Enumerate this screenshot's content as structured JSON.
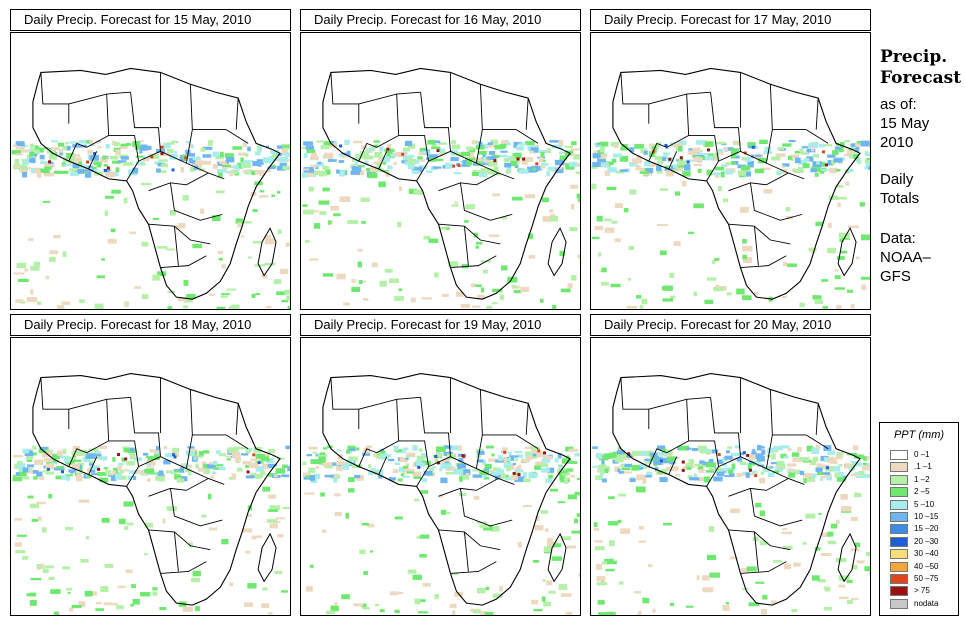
{
  "panels": [
    {
      "title": "Daily Precip. Forecast for  15 May, 2010"
    },
    {
      "title": "Daily Precip. Forecast for  16 May, 2010"
    },
    {
      "title": "Daily Precip. Forecast for  17 May, 2010"
    },
    {
      "title": "Daily Precip. Forecast for  18 May, 2010"
    },
    {
      "title": "Daily Precip. Forecast for  19 May, 2010"
    },
    {
      "title": "Daily Precip. Forecast for  20 May, 2010"
    }
  ],
  "sidebar": {
    "title_line1": "Precip.",
    "title_line2": "Forecast",
    "asof": "as of:",
    "date_line1": "15 May",
    "date_line2": "2010",
    "daily_line1": "Daily",
    "daily_line2": "Totals",
    "data_line1": "Data:",
    "data_line2": "NOAA–",
    "data_line3": "GFS"
  },
  "legend": {
    "title": "PPT (mm)",
    "entries": [
      {
        "label": "0 –1",
        "color": "#ffffff"
      },
      {
        "label": ".1 –1",
        "color": "#ecd9bf"
      },
      {
        "label": "1 –2",
        "color": "#b5f0a8"
      },
      {
        "label": "2 –5",
        "color": "#6fe86f"
      },
      {
        "label": "5 –10",
        "color": "#a8ecec"
      },
      {
        "label": "10 –15",
        "color": "#6fb6f0"
      },
      {
        "label": "15 –20",
        "color": "#3d8de6"
      },
      {
        "label": "20 –30",
        "color": "#1c5fd6"
      },
      {
        "label": "30 –40",
        "color": "#f6e07a"
      },
      {
        "label": "40 –50",
        "color": "#f3a63a"
      },
      {
        "label": "50 –75",
        "color": "#e0461c"
      },
      {
        "label": "> 75",
        "color": "#9c1010"
      },
      {
        "label": "nodata",
        "color": "#c8c8c8"
      }
    ]
  }
}
